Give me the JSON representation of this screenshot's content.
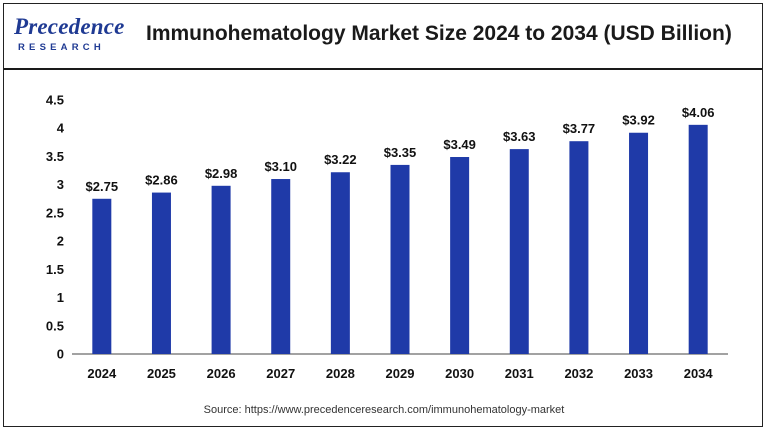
{
  "header": {
    "logo_main": "Precedence",
    "logo_sub": "RESEARCH",
    "title": "Immunohematology Market Size 2024 to 2034 (USD Billion)"
  },
  "source": "Source: https://www.precedenceresearch.com/immunohematology-market",
  "colors": {
    "bar": "#1f3aa8",
    "brand": "#1f3a93"
  },
  "chart_data": {
    "type": "bar",
    "title": "Immunohematology Market Size 2024 to 2034 (USD Billion)",
    "xlabel": "",
    "ylabel": "",
    "categories": [
      "2024",
      "2025",
      "2026",
      "2027",
      "2028",
      "2029",
      "2030",
      "2031",
      "2032",
      "2033",
      "2034"
    ],
    "values": [
      2.75,
      2.86,
      2.98,
      3.1,
      3.22,
      3.35,
      3.49,
      3.63,
      3.77,
      3.92,
      4.06
    ],
    "data_labels": [
      "$2.75",
      "$2.86",
      "$2.98",
      "$3.10",
      "$3.22",
      "$3.35",
      "$3.49",
      "$3.63",
      "$3.77",
      "$3.92",
      "$4.06"
    ],
    "yticks": [
      "0",
      "0.5",
      "1",
      "1.5",
      "2",
      "2.5",
      "3",
      "3.5",
      "4",
      "4.5"
    ],
    "ylim": [
      0,
      4.5
    ],
    "grid": false,
    "legend": "none"
  }
}
